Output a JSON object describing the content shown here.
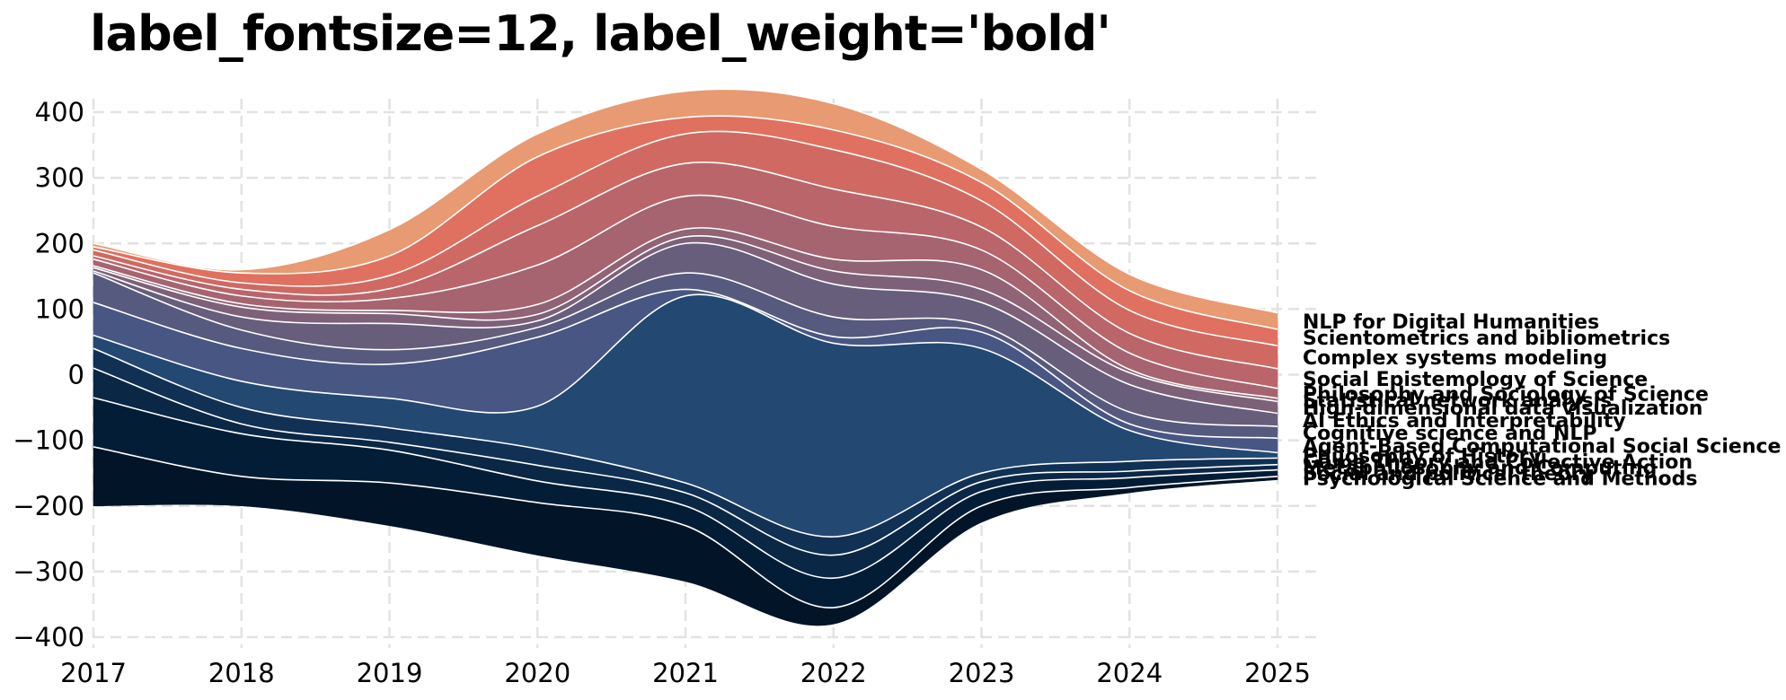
{
  "title": "label_fontsize=12, label_weight='bold'",
  "chart_data": {
    "type": "area",
    "subtype": "streamgraph",
    "title": "label_fontsize=12, label_weight='bold'",
    "xlabel": "",
    "ylabel": "",
    "x": [
      2017,
      2018,
      2019,
      2020,
      2021,
      2022,
      2023,
      2024,
      2025
    ],
    "x_ticks": [
      "2017",
      "2018",
      "2019",
      "2020",
      "2021",
      "2022",
      "2023",
      "2024",
      "2025"
    ],
    "y_ticks": [
      400,
      300,
      200,
      100,
      0,
      -100,
      -200,
      -300,
      -400
    ],
    "y_tick_labels": [
      "400",
      "300",
      "200",
      "100",
      "0",
      "−100",
      "−200",
      "−300",
      "−400"
    ],
    "xlim": [
      2017,
      2025.3
    ],
    "ylim": [
      -420,
      420
    ],
    "grid": true,
    "legend": "inline labels at right end",
    "baseline": [
      -200,
      -200,
      -230,
      -275,
      -315,
      -380,
      -225,
      -180,
      -160
    ],
    "series": [
      {
        "name": "Psychological Science and Methods",
        "values": [
          90,
          45,
          65,
          80,
          85,
          25,
          25,
          8,
          5
        ],
        "color": "#021427"
      },
      {
        "name": "Social and political theory",
        "values": [
          75,
          65,
          50,
          33,
          30,
          45,
          22,
          15,
          10
        ],
        "color": "#041d37"
      },
      {
        "name": "Metaphilosophy and Computing",
        "values": [
          45,
          15,
          12,
          24,
          20,
          35,
          15,
          10,
          8
        ],
        "color": "#0b2746"
      },
      {
        "name": "Game Theory and Collective Action",
        "values": [
          30,
          25,
          22,
          25,
          15,
          28,
          13,
          15,
          10
        ],
        "color": "#103154"
      },
      {
        "name": "Philosophy of History",
        "values": [
          20,
          40,
          45,
          65,
          285,
          295,
          190,
          47,
          8
        ],
        "color": "#234872"
      },
      {
        "name": "Agent-Based Computational Social Science",
        "values": [
          50,
          50,
          52,
          105,
          10,
          10,
          25,
          10,
          22
        ],
        "color": "#485683"
      },
      {
        "name": "Cognitive science and NLP",
        "values": [
          45,
          28,
          22,
          15,
          25,
          30,
          10,
          18,
          18
        ],
        "color": "#565a7e"
      },
      {
        "name": "AI Ethics and Interpretability",
        "values": [
          3,
          20,
          40,
          10,
          45,
          50,
          35,
          42,
          20
        ],
        "color": "#675e7c"
      },
      {
        "name": "High-dimensional data visualization",
        "values": [
          5,
          15,
          15,
          10,
          10,
          20,
          20,
          18,
          18
        ],
        "color": "#7d6179"
      },
      {
        "name": "Statistical network analysis",
        "values": [
          3,
          5,
          5,
          15,
          12,
          18,
          30,
          5,
          5
        ],
        "color": "#906375"
      },
      {
        "name": "Philosophy and Sociology of Science",
        "values": [
          10,
          12,
          18,
          60,
          50,
          50,
          30,
          25,
          15
        ],
        "color": "#a66470"
      },
      {
        "name": "Social Epistemology of Science",
        "values": [
          5,
          10,
          15,
          60,
          50,
          57,
          35,
          30,
          30
        ],
        "color": "#b9656a"
      },
      {
        "name": "Complex systems modeling",
        "values": [
          9,
          10,
          20,
          45,
          45,
          60,
          40,
          35,
          35
        ],
        "color": "#cf6962"
      },
      {
        "name": "Scientometrics and bibliometrics",
        "values": [
          5,
          15,
          30,
          60,
          25,
          30,
          28,
          30,
          25
        ],
        "color": "#e0705f"
      },
      {
        "name": "NLP for Digital Humanities",
        "values": [
          5,
          5,
          40,
          35,
          40,
          40,
          20,
          25,
          25
        ],
        "color": "#e89a72"
      }
    ]
  }
}
